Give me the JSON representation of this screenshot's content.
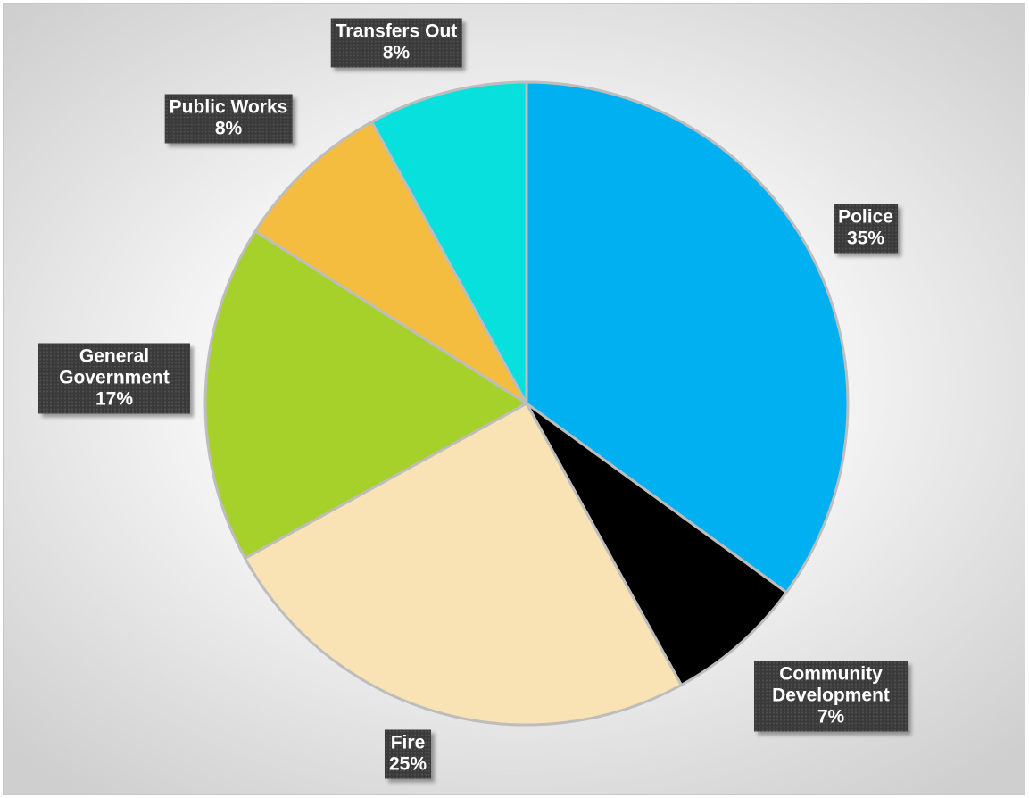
{
  "chart_data": {
    "type": "pie",
    "title": "",
    "start_angle_deg": 0,
    "direction": "clockwise",
    "slices": [
      {
        "label": "Police",
        "value": 35,
        "value_label": "35%",
        "color": "#00b0f0"
      },
      {
        "label": "Community Development",
        "value": 7,
        "value_label": "7%",
        "color": "#000000"
      },
      {
        "label": "Fire",
        "value": 25,
        "value_label": "25%",
        "color": "#f9e2b3"
      },
      {
        "label": "General Government",
        "value": 17,
        "value_label": "17%",
        "color": "#a6d02a"
      },
      {
        "label": "Public Works",
        "value": 8,
        "value_label": "8%",
        "color": "#f4bd3f"
      },
      {
        "label": "Transfers Out",
        "value": 8,
        "value_label": "8%",
        "color": "#07e0dc"
      }
    ],
    "legend": "none",
    "data_labels": "callout-boxes"
  }
}
